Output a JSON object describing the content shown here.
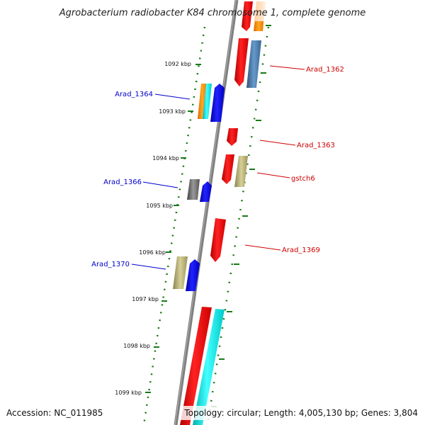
{
  "title": "Agrobacterium radiobacter K84 chromosome 1, complete genome",
  "accession": "Accession: NC_011985",
  "topology": "Topology: circular; Length: 4,005,130 bp; Genes: 3,804",
  "ticks": [
    "1092 kbp",
    "1093 kbp",
    "1094 kbp",
    "1095 kbp",
    "1096 kbp",
    "1097 kbp",
    "1098 kbp",
    "1099 kbp"
  ],
  "genes_left": [
    "Arad_1364",
    "Arad_1366",
    "Arad_1370"
  ],
  "genes_right": [
    "Arad_1362",
    "Arad_1363",
    "gstch6",
    "Arad_1369"
  ],
  "colors": {
    "red": "#ee0000",
    "blue": "#0000dd",
    "cyan": "#00dddd",
    "orange": "#ff8800",
    "steel": "#4477aa",
    "khaki": "#aaa066",
    "gray": "#666666",
    "green": "#1a7a1a"
  }
}
